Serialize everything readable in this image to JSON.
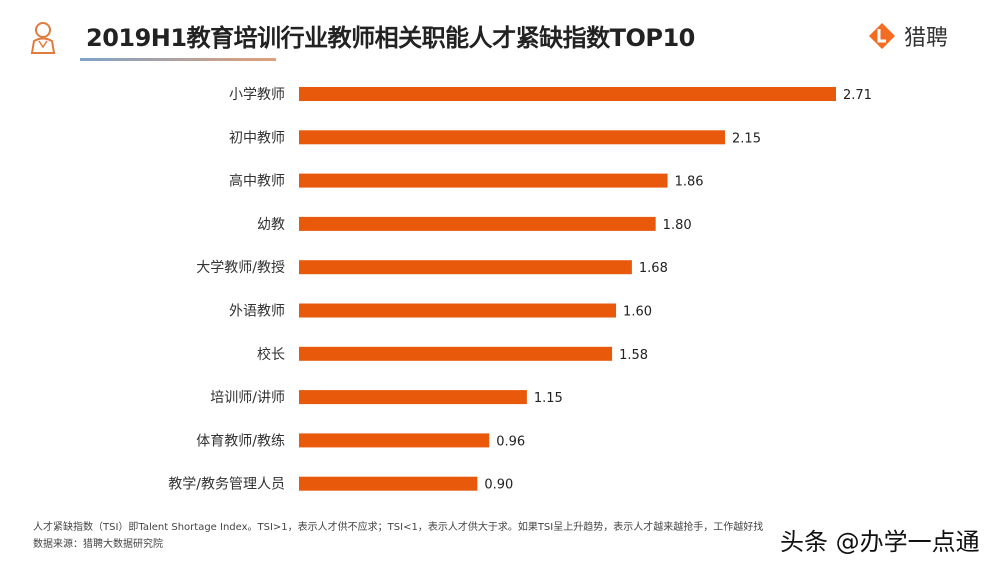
{
  "header": {
    "title": "2019H1教育培训行业教师相关职能人才紧缺指数TOP10",
    "logo_text": "猎聘",
    "logo_icon": "liepin-logo-icon",
    "person_icon": "person-icon"
  },
  "chart_data": {
    "type": "bar",
    "orientation": "horizontal",
    "title": "2019H1教育培训行业教师相关职能人才紧缺指数TOP10",
    "categories": [
      "小学教师",
      "初中教师",
      "高中教师",
      "幼教",
      "大学教师/教授",
      "外语教师",
      "校长",
      "培训师/讲师",
      "体育教师/教练",
      "教学/教务管理人员"
    ],
    "values": [
      2.71,
      2.15,
      1.86,
      1.8,
      1.68,
      1.6,
      1.58,
      1.15,
      0.96,
      0.9
    ],
    "labels": [
      "2.71",
      "2.15",
      "1.86",
      "1.80",
      "1.68",
      "1.60",
      "1.58",
      "1.15",
      "0.96",
      "0.90"
    ],
    "xlim": [
      0,
      2.71
    ],
    "bar_color": "#e8590c",
    "grid": false
  },
  "footer": {
    "note": "人才紧缺指数（TSI）即Talent Shortage Index。TSI>1，表示人才供不应求；TSI<1，表示人才供大于求。如果TSI呈上升趋势，表示人才越来越抢手，工作越好找",
    "source": "数据来源：猎聘大数据研究院",
    "watermark": "头条 @办学一点通"
  }
}
